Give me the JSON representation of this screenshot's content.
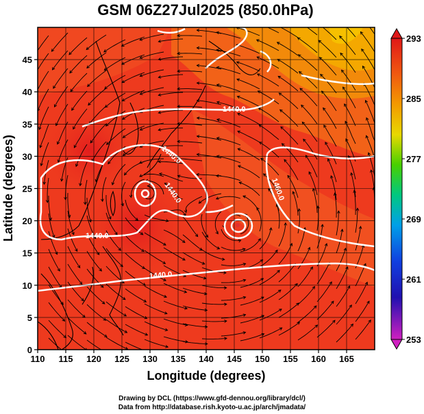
{
  "title": "GSM 06Z27Jul2025 (850.0hPa)",
  "xlabel": "Longitude (degrees)",
  "ylabel": "Latitude  (degrees)",
  "x_ticks": [
    "110",
    "115",
    "120",
    "125",
    "130",
    "135",
    "140",
    "145",
    "150",
    "155",
    "160",
    "165"
  ],
  "y_ticks": [
    "0",
    "5",
    "10",
    "15",
    "20",
    "25",
    "30",
    "35",
    "40",
    "45"
  ],
  "colorbar_ticks": [
    "293",
    "285",
    "277",
    "269",
    "261",
    "253"
  ],
  "contour_labels": [
    "1440.0",
    "1440.0",
    "1440.0",
    "1440.0",
    "1440.0",
    "1460.0"
  ],
  "credits": {
    "line1": "Drawing by DCL (https://www.gfd-dennou.org/library/dcl/)",
    "line2": "Data from http://database.rish.kyoto-u.ac.jp/arch/jmadata/"
  },
  "colors": {
    "field_warm": "#ee3a1e",
    "field_mid": "#f26e10",
    "field_cool": "#f3a800",
    "contour": "#ffffff",
    "streamline": "#000000"
  },
  "map_data": {
    "lon_range": [
      110,
      170
    ],
    "lat_range": [
      0,
      50
    ],
    "colorbar_range": [
      253,
      293
    ],
    "contour_interval_shown": "1440.0",
    "grid": true
  }
}
